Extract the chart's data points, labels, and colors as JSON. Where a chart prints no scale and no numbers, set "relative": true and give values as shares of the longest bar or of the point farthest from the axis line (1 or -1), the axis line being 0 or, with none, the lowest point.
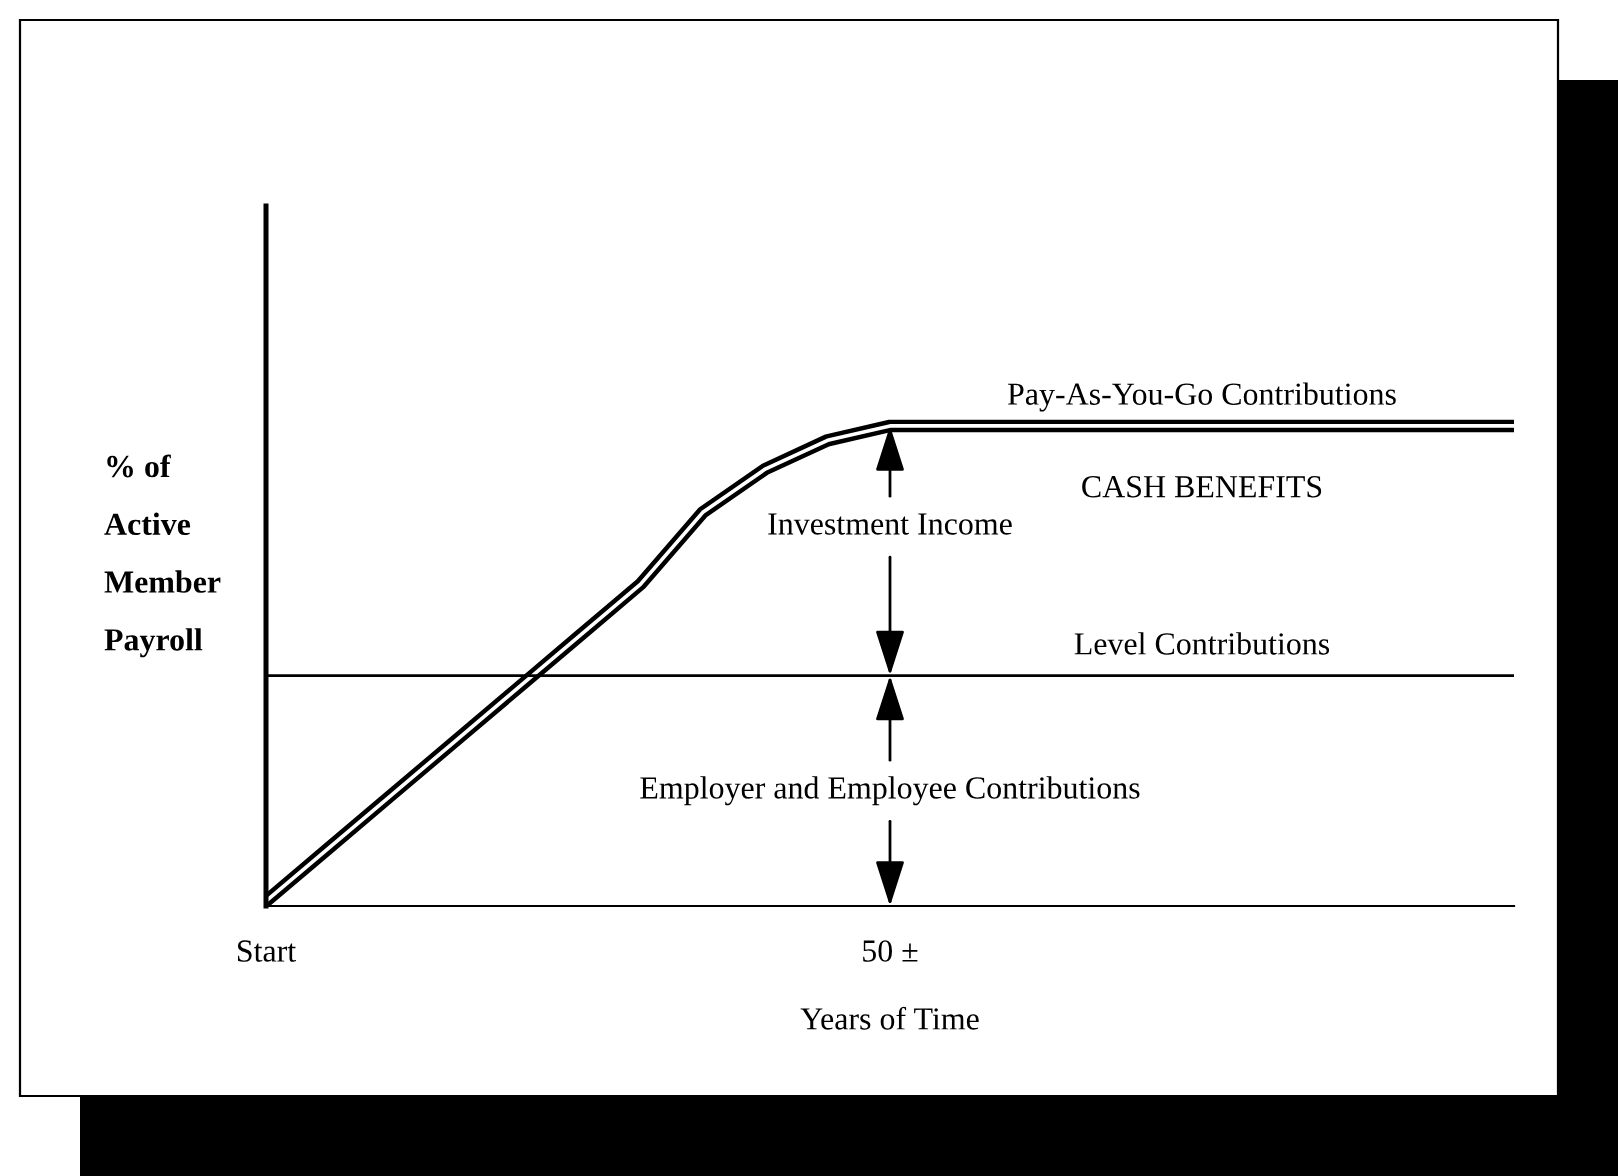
{
  "chart_data": {
    "type": "line",
    "relative": true,
    "xlabel": "Years of Time",
    "ylabel": "% of\nActive\nMember\nPayroll",
    "categories": [
      "Start",
      null,
      null,
      null,
      null,
      null,
      null,
      null,
      null,
      null,
      "50 ±",
      null,
      null,
      null,
      null,
      null,
      null,
      null,
      null,
      null,
      null
    ],
    "series": [
      {
        "name": "Pay-As-You-Go Contributions",
        "color": "#000000",
        "values": [
          0.01,
          0.12,
          0.23,
          0.34,
          0.45,
          0.56,
          0.67,
          0.82,
          0.91,
          0.97,
          1.0,
          1.0,
          1.0,
          1.0,
          1.0,
          1.0,
          1.0,
          1.0,
          1.0,
          1.0,
          1.0
        ]
      },
      {
        "name": "Level Contributions",
        "color": "#000000",
        "values": [
          0.48,
          0.48,
          0.48,
          0.48,
          0.48,
          0.48,
          0.48,
          0.48,
          0.48,
          0.48,
          0.48,
          0.48,
          0.48,
          0.48,
          0.48,
          0.48,
          0.48,
          0.48,
          0.48,
          0.48,
          0.48
        ]
      }
    ],
    "annotations": [
      "CASH BENEFITS",
      "Investment Income",
      "Employer and Employee Contributions"
    ],
    "grid": false,
    "legend": false,
    "marker": "none",
    "line_style": "solid"
  }
}
